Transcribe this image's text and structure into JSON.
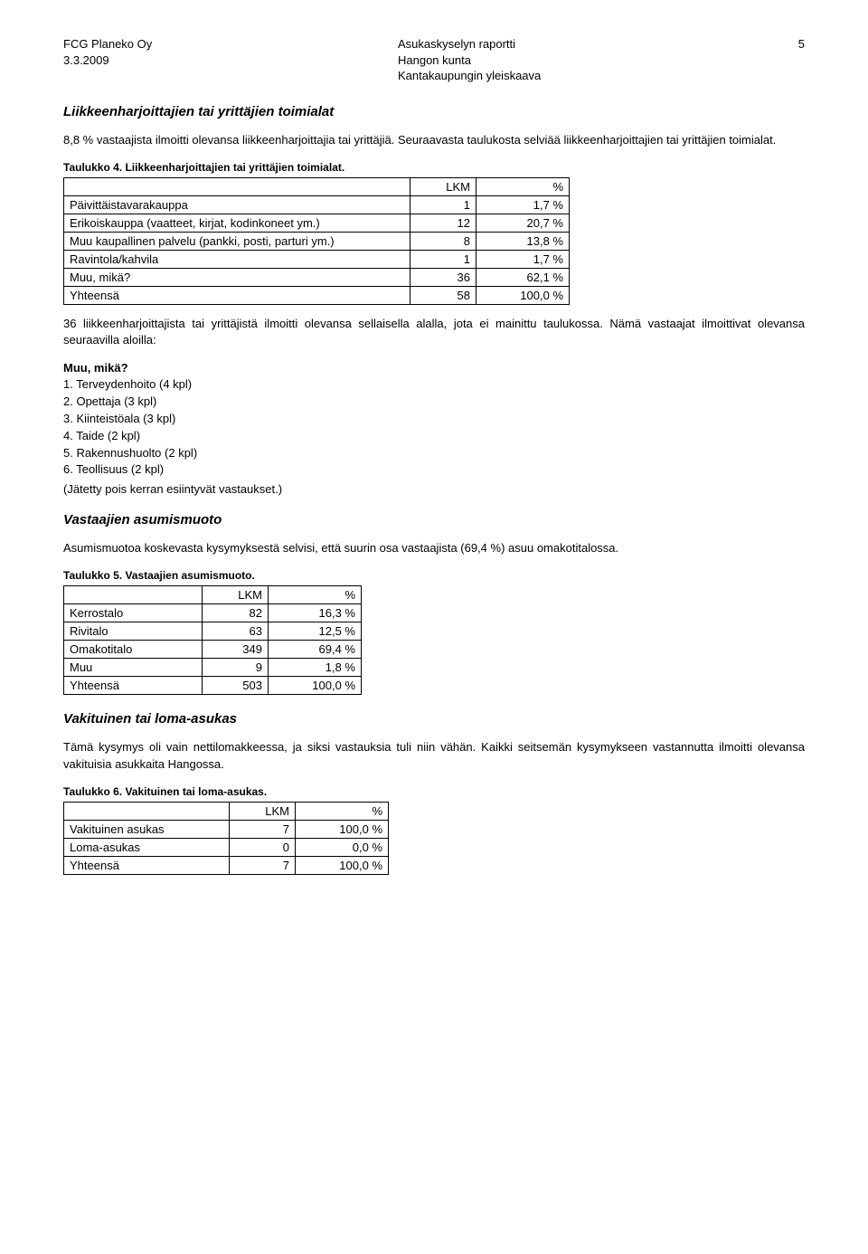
{
  "header": {
    "left_line1": "FCG Planeko Oy",
    "left_line2": "3.3.2009",
    "center_line1": "Asukaskyselyn raportti",
    "center_line2": "Hangon kunta",
    "center_line3": "Kantakaupungin yleiskaava",
    "page_number": "5"
  },
  "s1": {
    "title": "Liikkeenharjoittajien tai yrittäjien toimialat",
    "para": "8,8 % vastaajista ilmoitti olevansa liikkeenharjoittajia tai yrittäjiä. Seuraavasta taulukosta selviää liikkeenharjoittajien tai yrittäjien toimialat."
  },
  "t4": {
    "caption": "Taulukko 4. Liikkeenharjoittajien tai yrittäjien toimialat.",
    "col_lkm": "LKM",
    "col_pct": "%",
    "rows": [
      {
        "label": "Päivittäistavarakauppa",
        "lkm": "1",
        "pct": "1,7 %"
      },
      {
        "label": "Erikoiskauppa (vaatteet, kirjat, kodinkoneet ym.)",
        "lkm": "12",
        "pct": "20,7 %"
      },
      {
        "label": "Muu kaupallinen palvelu (pankki, posti, parturi ym.)",
        "lkm": "8",
        "pct": "13,8 %"
      },
      {
        "label": "Ravintola/kahvila",
        "lkm": "1",
        "pct": "1,7 %"
      },
      {
        "label": "Muu, mikä?",
        "lkm": "36",
        "pct": "62,1 %"
      },
      {
        "label": "Yhteensä",
        "lkm": "58",
        "pct": "100,0 %"
      }
    ],
    "col_widths": {
      "label": 370,
      "lkm": 60,
      "pct": 90
    },
    "para_after": "36 liikkeenharjoittajista tai yrittäjistä ilmoitti olevansa sellaisella alalla, jota ei mainittu taulukossa. Nämä vastaajat ilmoittivat olevansa seuraavilla aloilla:"
  },
  "list1": {
    "heading": "Muu, mikä?",
    "items": [
      "1. Terveydenhoito (4 kpl)",
      "2. Opettaja (3 kpl)",
      "3. Kiinteistöala (3 kpl)",
      "4. Taide (2 kpl)",
      "5. Rakennushuolto (2 kpl)",
      "6. Teollisuus (2 kpl)"
    ],
    "note": "(Jätetty pois kerran esiintyvät vastaukset.)"
  },
  "s2": {
    "title": "Vastaajien asumismuoto",
    "para": "Asumismuotoa koskevasta kysymyksestä selvisi, että suurin osa vastaajista (69,4 %) asuu omakotitalossa."
  },
  "t5": {
    "caption": "Taulukko 5. Vastaajien asumismuoto.",
    "col_lkm": "LKM",
    "col_pct": "%",
    "rows": [
      {
        "label": "Kerrostalo",
        "lkm": "82",
        "pct": "16,3 %"
      },
      {
        "label": "Rivitalo",
        "lkm": "63",
        "pct": "12,5 %"
      },
      {
        "label": "Omakotitalo",
        "lkm": "349",
        "pct": "69,4 %"
      },
      {
        "label": "Muu",
        "lkm": "9",
        "pct": "1,8 %"
      },
      {
        "label": "Yhteensä",
        "lkm": "503",
        "pct": "100,0 %"
      }
    ],
    "col_widths": {
      "label": 140,
      "lkm": 60,
      "pct": 90
    }
  },
  "s3": {
    "title": "Vakituinen tai loma-asukas",
    "para": "Tämä kysymys oli vain nettilomakkeessa, ja siksi vastauksia tuli niin vähän. Kaikki seitsemän kysymykseen vastannutta ilmoitti olevansa vakituisia asukkaita Hangossa."
  },
  "t6": {
    "caption": "Taulukko 6. Vakituinen tai loma-asukas.",
    "col_lkm": "LKM",
    "col_pct": "%",
    "rows": [
      {
        "label": "Vakituinen asukas",
        "lkm": "7",
        "pct": "100,0 %"
      },
      {
        "label": "Loma-asukas",
        "lkm": "0",
        "pct": "0,0 %"
      },
      {
        "label": "Yhteensä",
        "lkm": "7",
        "pct": "100,0 %"
      }
    ],
    "col_widths": {
      "label": 170,
      "lkm": 60,
      "pct": 90
    }
  }
}
